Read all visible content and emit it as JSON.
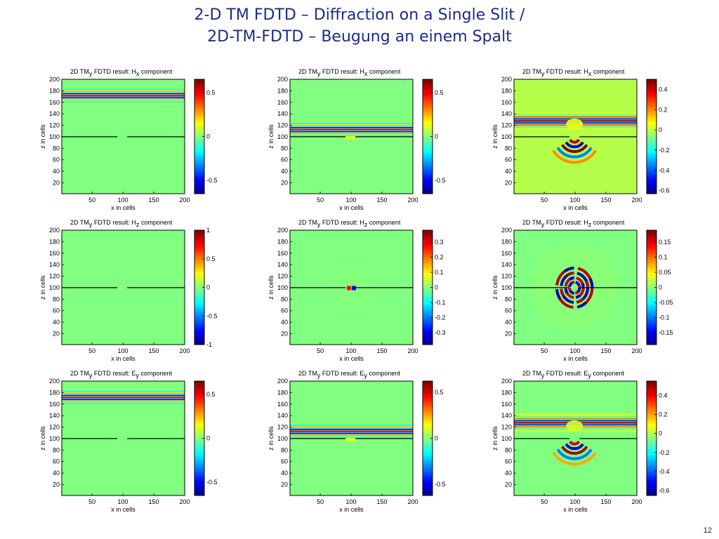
{
  "slide": {
    "title_line1": "2-D TM FDTD – Diffraction on a Single Slit /",
    "title_line2": "2D-TM-FDTD – Beugung an einem Spalt",
    "page_number": "12"
  },
  "colors": {
    "title": "#1c2a8c",
    "background_field": "#80ff80"
  },
  "chart_data": [
    {
      "type": "heatmap",
      "title_prefix": "2D TM",
      "title_sub": "y",
      "title_mid": " FDTD result: H",
      "title_comp": "x",
      "title_suffix": " component",
      "xlabel": "x in cells",
      "ylabel": "z in cells",
      "xticks": [
        50,
        100,
        150,
        200
      ],
      "yticks": [
        20,
        40,
        60,
        80,
        100,
        120,
        140,
        160,
        180,
        200
      ],
      "xlim": [
        1,
        200
      ],
      "ylim": [
        1,
        200
      ],
      "colormap": "jet",
      "clim": [
        -0.65,
        0.65
      ],
      "colorbar_ticks": [
        "0.5",
        "0",
        "-0.5"
      ],
      "colorbar_values": [
        0.5,
        0,
        -0.5
      ],
      "background": "#80ff80",
      "wall_z": 100,
      "slit_x": [
        91,
        107
      ],
      "pattern": "plane-wave",
      "wave_center_z": 172
    },
    {
      "type": "heatmap",
      "title_prefix": "2D TM",
      "title_sub": "y",
      "title_mid": " FDTD result: H",
      "title_comp": "x",
      "title_suffix": " component",
      "xlabel": "x in cells",
      "ylabel": "z in cells",
      "xticks": [
        50,
        100,
        150,
        200
      ],
      "yticks": [
        20,
        40,
        60,
        80,
        100,
        120,
        140,
        160,
        180,
        200
      ],
      "xlim": [
        1,
        200
      ],
      "ylim": [
        1,
        200
      ],
      "colormap": "jet",
      "clim": [
        -0.65,
        0.65
      ],
      "colorbar_ticks": [
        "0.5",
        "0",
        "-0.5"
      ],
      "colorbar_values": [
        0.5,
        0,
        -0.5
      ],
      "background": "#80ff80",
      "wall_z": 100,
      "slit_x": [
        91,
        107
      ],
      "pattern": "plane-wave",
      "wave_center_z": 113
    },
    {
      "type": "heatmap",
      "title_prefix": "2D TM",
      "title_sub": "y",
      "title_mid": " FDTD result: H",
      "title_comp": "x",
      "title_suffix": " component",
      "xlabel": "x in cells",
      "ylabel": "z in cells",
      "xticks": [
        50,
        100,
        150,
        200
      ],
      "yticks": [
        20,
        40,
        60,
        80,
        100,
        120,
        140,
        160,
        180,
        200
      ],
      "xlim": [
        1,
        200
      ],
      "ylim": [
        1,
        200
      ],
      "colormap": "jet",
      "clim": [
        -0.63,
        0.5
      ],
      "colorbar_ticks": [
        "0.4",
        "0.2",
        "0",
        "-0.2",
        "-0.4",
        "-0.6"
      ],
      "colorbar_values": [
        0.4,
        0.2,
        0,
        -0.2,
        -0.4,
        -0.6
      ],
      "background": "#b4ff4a",
      "wall_z": 100,
      "slit_x": [
        91,
        107
      ],
      "pattern": "diffracted",
      "wave_center_z": 128
    },
    {
      "type": "heatmap",
      "title_prefix": "2D TM",
      "title_sub": "y",
      "title_mid": " FDTD result: H",
      "title_comp": "z",
      "title_suffix": " component",
      "xlabel": "x in cells",
      "ylabel": "z in cells",
      "xticks": [
        50,
        100,
        150,
        200
      ],
      "yticks": [
        20,
        40,
        60,
        80,
        100,
        120,
        140,
        160,
        180,
        200
      ],
      "xlim": [
        1,
        200
      ],
      "ylim": [
        1,
        200
      ],
      "colormap": "jet",
      "clim": [
        -1,
        1
      ],
      "colorbar_ticks": [
        "1",
        "0.5",
        "0",
        "-0.5",
        "-1"
      ],
      "colorbar_values": [
        1,
        0.5,
        0,
        -0.5,
        -1
      ],
      "background": "#80ff80",
      "wall_z": 100,
      "slit_x": [
        91,
        107
      ],
      "pattern": "none"
    },
    {
      "type": "heatmap",
      "title_prefix": "2D TM",
      "title_sub": "y",
      "title_mid": " FDTD result: H",
      "title_comp": "z",
      "title_suffix": " component",
      "xlabel": "x in cells",
      "ylabel": "z in cells",
      "xticks": [
        50,
        100,
        150,
        200
      ],
      "yticks": [
        20,
        40,
        60,
        80,
        100,
        120,
        140,
        160,
        180,
        200
      ],
      "xlim": [
        1,
        200
      ],
      "ylim": [
        1,
        200
      ],
      "colormap": "jet",
      "clim": [
        -0.38,
        0.38
      ],
      "colorbar_ticks": [
        "0.3",
        "0.2",
        "0.1",
        "0",
        "-0.1",
        "-0.2",
        "-0.3"
      ],
      "colorbar_values": [
        0.3,
        0.2,
        0.1,
        0,
        -0.1,
        -0.2,
        -0.3
      ],
      "background": "#80ff80",
      "wall_z": 100,
      "slit_x": [
        91,
        107
      ],
      "pattern": "slit-spot"
    },
    {
      "type": "heatmap",
      "title_prefix": "2D TM",
      "title_sub": "y",
      "title_mid": " FDTD result: H",
      "title_comp": "z",
      "title_suffix": " component",
      "xlabel": "x in cells",
      "ylabel": "z in cells",
      "xticks": [
        50,
        100,
        150,
        200
      ],
      "yticks": [
        20,
        40,
        60,
        80,
        100,
        120,
        140,
        160,
        180,
        200
      ],
      "xlim": [
        1,
        200
      ],
      "ylim": [
        1,
        200
      ],
      "colormap": "jet",
      "clim": [
        -0.19,
        0.19
      ],
      "colorbar_ticks": [
        "0.15",
        "0.1",
        "0.05",
        "0",
        "-0.05",
        "-0.1",
        "-0.15"
      ],
      "colorbar_values": [
        0.15,
        0.1,
        0.05,
        0,
        -0.05,
        -0.1,
        -0.15
      ],
      "background": "#80ff80",
      "wall_z": 100,
      "slit_x": [
        91,
        107
      ],
      "pattern": "rings"
    },
    {
      "type": "heatmap",
      "title_prefix": "2D TM",
      "title_sub": "y",
      "title_mid": " FDTD result: E",
      "title_comp": "y",
      "title_suffix": " component",
      "xlabel": "x in cells",
      "ylabel": "z in cells",
      "xticks": [
        50,
        100,
        150,
        200
      ],
      "yticks": [
        20,
        40,
        60,
        80,
        100,
        120,
        140,
        160,
        180,
        200
      ],
      "xlim": [
        1,
        200
      ],
      "ylim": [
        1,
        200
      ],
      "colormap": "jet",
      "clim": [
        -0.65,
        0.65
      ],
      "colorbar_ticks": [
        "0.5",
        "0",
        "-0.5"
      ],
      "colorbar_values": [
        0.5,
        0,
        -0.5
      ],
      "background": "#80ff80",
      "wall_z": 100,
      "slit_x": [
        91,
        107
      ],
      "pattern": "plane-wave",
      "wave_center_z": 172
    },
    {
      "type": "heatmap",
      "title_prefix": "2D TM",
      "title_sub": "y",
      "title_mid": " FDTD result: E",
      "title_comp": "y",
      "title_suffix": " component",
      "xlabel": "x in cells",
      "ylabel": "z in cells",
      "xticks": [
        50,
        100,
        150,
        200
      ],
      "yticks": [
        20,
        40,
        60,
        80,
        100,
        120,
        140,
        160,
        180,
        200
      ],
      "xlim": [
        1,
        200
      ],
      "ylim": [
        1,
        200
      ],
      "colormap": "jet",
      "clim": [
        -0.62,
        0.62
      ],
      "colorbar_ticks": [
        "0.5",
        "0",
        "-0.5"
      ],
      "colorbar_values": [
        0.5,
        0,
        -0.5
      ],
      "background": "#80ff80",
      "wall_z": 100,
      "slit_x": [
        91,
        107
      ],
      "pattern": "plane-wave",
      "wave_center_z": 113
    },
    {
      "type": "heatmap",
      "title_prefix": "2D TM",
      "title_sub": "y",
      "title_mid": " FDTD result: E",
      "title_comp": "y",
      "title_suffix": " component",
      "xlabel": "x in cells",
      "ylabel": "z in cells",
      "xticks": [
        50,
        100,
        150,
        200
      ],
      "yticks": [
        20,
        40,
        60,
        80,
        100,
        120,
        140,
        160,
        180,
        200
      ],
      "xlim": [
        1,
        200
      ],
      "ylim": [
        1,
        200
      ],
      "colormap": "jet",
      "clim": [
        -0.65,
        0.55
      ],
      "colorbar_ticks": [
        "0.4",
        "0.2",
        "0",
        "-0.2",
        "-0.4",
        "-0.6"
      ],
      "colorbar_values": [
        0.4,
        0.2,
        0,
        -0.2,
        -0.4,
        -0.6
      ],
      "background": "#80ff80",
      "wall_z": 100,
      "slit_x": [
        91,
        107
      ],
      "pattern": "diffracted",
      "wave_center_z": 128
    }
  ]
}
